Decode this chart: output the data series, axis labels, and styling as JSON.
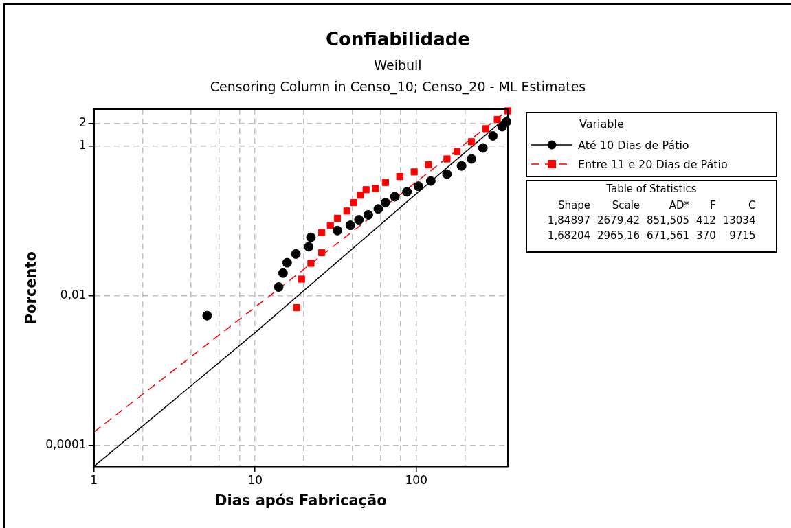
{
  "chart_data": {
    "type": "scatter",
    "title": "Confiabilidade",
    "subtitle": "Weibull\nCensoring Column in Censo_10; Censo_20 - ML Estimates",
    "xlabel": "Dias após Fabricação",
    "ylabel": "Porcento",
    "legend_title": "Variable",
    "legend": "top right",
    "grid": true,
    "log": "xy",
    "xlim": [
      1,
      370
    ],
    "ylim": [
      5.2e-05,
      3.1
    ],
    "xticks": [
      1,
      {
        "value": 2,
        "label": null
      },
      {
        "value": 4,
        "label": null
      },
      {
        "value": 6,
        "label": null
      },
      {
        "value": 8,
        "label": null
      },
      10,
      {
        "value": 20,
        "label": null
      },
      {
        "value": 40,
        "label": null
      },
      {
        "value": 60,
        "label": null
      },
      {
        "value": 80,
        "label": null
      },
      100,
      {
        "value": 200,
        "label": null
      }
    ],
    "yticks": [
      {
        "value": 0.0001,
        "label": "0,0001"
      },
      {
        "value": 0.01,
        "label": "0,01"
      },
      1,
      2
    ],
    "annotations": [
      "Table of Statistics",
      "Shape\tScale\tAD*\tF\tC",
      "1,84897\t2679,42\t851,505\t412\t13034",
      "1,68204\t2965,16\t671,561\t370\t9715"
    ],
    "series": [
      {
        "name": "Até 10 Dias de Pátio",
        "type": "scatter",
        "color": "#000000",
        "marker": "circle",
        "x": [
          5.04,
          14.0,
          14.9,
          15.8,
          17.9,
          21.5,
          22.2,
          32.4,
          39.0,
          44.1,
          50.4,
          58.1,
          64.4,
          73.6,
          87.5,
          103,
          123,
          155,
          191,
          220,
          259,
          299,
          341,
          363
        ],
        "values": [
          0.0054,
          0.013,
          0.02,
          0.0275,
          0.036,
          0.045,
          0.06,
          0.074,
          0.087,
          0.103,
          0.12,
          0.144,
          0.175,
          0.21,
          0.244,
          0.29,
          0.34,
          0.42,
          0.54,
          0.67,
          0.94,
          1.36,
          1.81,
          2.1
        ]
      },
      {
        "type": "line",
        "color": "#000000",
        "marker": "none",
        "line_style": "solid",
        "x": [
          1,
          10,
          100,
          370
        ],
        "values": [
          5.2e-05,
          0.0032,
          0.23,
          2.5
        ]
      },
      {
        "name": "Entre 11 e 20 Dias de Pátio",
        "type": "scatter",
        "color": "#ff0000",
        "marker": "square",
        "x": [
          18.1,
          19.4,
          22.2,
          25.9,
          25.9,
          29.3,
          32.4,
          37.1,
          41.0,
          45.0,
          48.8,
          55.8,
          64.4,
          79,
          97,
          119,
          155,
          179,
          220,
          270,
          318,
          370
        ],
        "values": [
          0.0069,
          0.0166,
          0.027,
          0.0375,
          0.0695,
          0.087,
          0.108,
          0.135,
          0.175,
          0.22,
          0.26,
          0.27,
          0.325,
          0.39,
          0.45,
          0.56,
          0.67,
          0.84,
          1.14,
          1.7,
          2.26,
          2.94
        ]
      },
      {
        "type": "line",
        "color": "#ff0000",
        "marker": "none",
        "line_style": "dashed",
        "x": [
          1,
          10,
          100,
          370
        ],
        "values": [
          0.00015,
          0.007,
          0.33,
          3.0
        ]
      }
    ]
  }
}
